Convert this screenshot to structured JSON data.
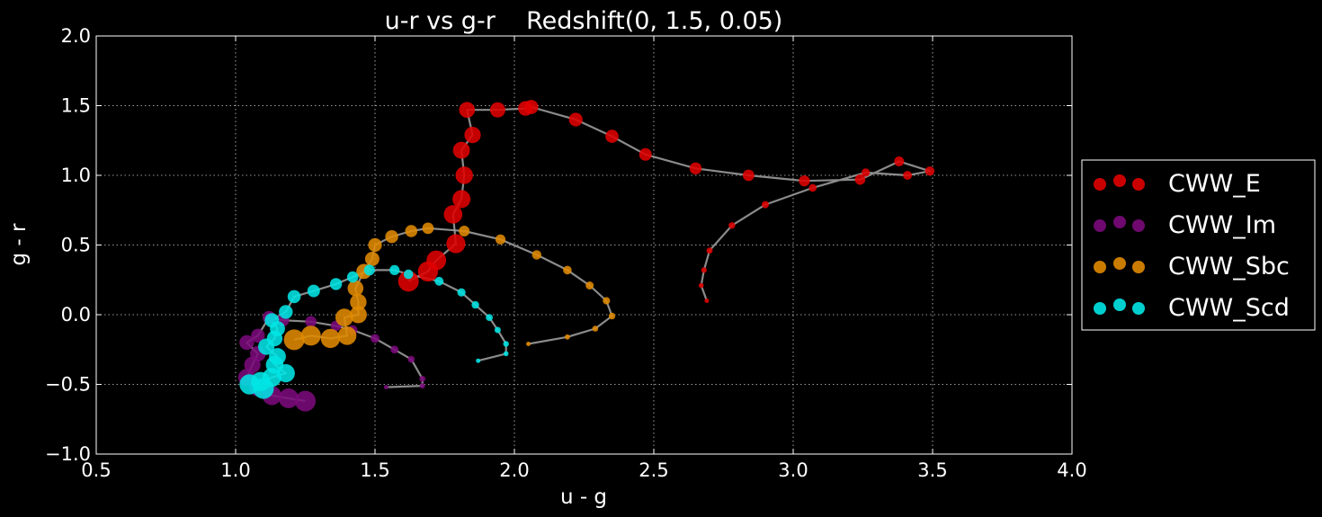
{
  "chart_data": {
    "type": "scatter",
    "title": "u-r vs g-r    Redshift(0, 1.5, 0.05)",
    "xlabel": "u - g",
    "ylabel": "g - r",
    "xlim": [
      0.5,
      4.0
    ],
    "ylim": [
      -1.0,
      2.0
    ],
    "xticks": [
      "0.5",
      "1.0",
      "1.5",
      "2.0",
      "2.5",
      "3.0",
      "3.5",
      "4.0"
    ],
    "yticks": [
      "−1.0",
      "−0.5",
      "0.0",
      "0.5",
      "1.0",
      "1.5",
      "2.0"
    ],
    "grid": true,
    "legend_position": "outside-right",
    "background": "#000000",
    "track_color": "#9a9a9a",
    "series": [
      {
        "name": "CWW_E",
        "color": "#e00000",
        "points": [
          [
            2.69,
            0.1
          ],
          [
            2.67,
            0.21
          ],
          [
            2.68,
            0.32
          ],
          [
            2.7,
            0.46
          ],
          [
            2.78,
            0.64
          ],
          [
            2.9,
            0.79
          ],
          [
            3.07,
            0.91
          ],
          [
            3.26,
            1.02
          ],
          [
            3.41,
            1.0
          ],
          [
            3.49,
            1.03
          ],
          [
            3.38,
            1.1
          ],
          [
            3.24,
            0.97
          ],
          [
            3.04,
            0.96
          ],
          [
            2.84,
            1.0
          ],
          [
            2.65,
            1.05
          ],
          [
            2.47,
            1.15
          ],
          [
            2.35,
            1.28
          ],
          [
            2.22,
            1.4
          ],
          [
            2.06,
            1.49
          ],
          [
            2.04,
            1.48
          ],
          [
            1.94,
            1.47
          ],
          [
            1.83,
            1.47
          ],
          [
            1.85,
            1.29
          ],
          [
            1.81,
            1.18
          ],
          [
            1.82,
            1.0
          ],
          [
            1.81,
            0.83
          ],
          [
            1.78,
            0.72
          ],
          [
            1.79,
            0.51
          ],
          [
            1.72,
            0.39
          ],
          [
            1.69,
            0.31
          ],
          [
            1.62,
            0.24
          ]
        ]
      },
      {
        "name": "CWW_Im",
        "color": "#7b0a7b",
        "points": [
          [
            1.54,
            -0.52
          ],
          [
            1.67,
            -0.51
          ],
          [
            1.67,
            -0.46
          ],
          [
            1.63,
            -0.32
          ],
          [
            1.57,
            -0.25
          ],
          [
            1.5,
            -0.17
          ],
          [
            1.42,
            -0.11
          ],
          [
            1.36,
            -0.08
          ],
          [
            1.27,
            -0.05
          ],
          [
            1.17,
            -0.04
          ],
          [
            1.12,
            -0.02
          ],
          [
            1.08,
            -0.15
          ],
          [
            1.04,
            -0.2
          ],
          [
            1.08,
            -0.28
          ],
          [
            1.06,
            -0.36
          ],
          [
            1.04,
            -0.45
          ],
          [
            1.08,
            -0.52
          ],
          [
            1.13,
            -0.58
          ],
          [
            1.19,
            -0.6
          ],
          [
            1.25,
            -0.62
          ]
        ]
      },
      {
        "name": "CWW_Sbc",
        "color": "#e08a00",
        "points": [
          [
            2.05,
            -0.21
          ],
          [
            2.19,
            -0.16
          ],
          [
            2.29,
            -0.1
          ],
          [
            2.35,
            -0.01
          ],
          [
            2.33,
            0.1
          ],
          [
            2.27,
            0.21
          ],
          [
            2.19,
            0.32
          ],
          [
            2.08,
            0.43
          ],
          [
            1.95,
            0.54
          ],
          [
            1.82,
            0.6
          ],
          [
            1.69,
            0.62
          ],
          [
            1.63,
            0.6
          ],
          [
            1.56,
            0.56
          ],
          [
            1.5,
            0.5
          ],
          [
            1.49,
            0.4
          ],
          [
            1.46,
            0.31
          ],
          [
            1.43,
            0.19
          ],
          [
            1.44,
            0.09
          ],
          [
            1.44,
            0.0
          ],
          [
            1.39,
            -0.02
          ],
          [
            1.4,
            -0.15
          ],
          [
            1.34,
            -0.17
          ],
          [
            1.27,
            -0.15
          ],
          [
            1.21,
            -0.18
          ]
        ]
      },
      {
        "name": "CWW_Scd",
        "color": "#00e5e5",
        "points": [
          [
            1.87,
            -0.33
          ],
          [
            1.97,
            -0.28
          ],
          [
            1.97,
            -0.21
          ],
          [
            1.94,
            -0.11
          ],
          [
            1.91,
            -0.02
          ],
          [
            1.86,
            0.07
          ],
          [
            1.81,
            0.16
          ],
          [
            1.73,
            0.24
          ],
          [
            1.62,
            0.29
          ],
          [
            1.57,
            0.32
          ],
          [
            1.48,
            0.32
          ],
          [
            1.42,
            0.27
          ],
          [
            1.36,
            0.22
          ],
          [
            1.28,
            0.17
          ],
          [
            1.21,
            0.13
          ],
          [
            1.18,
            0.02
          ],
          [
            1.13,
            -0.04
          ],
          [
            1.15,
            -0.1
          ],
          [
            1.14,
            -0.17
          ],
          [
            1.11,
            -0.23
          ],
          [
            1.15,
            -0.3
          ],
          [
            1.14,
            -0.36
          ],
          [
            1.18,
            -0.42
          ],
          [
            1.13,
            -0.45
          ],
          [
            1.09,
            -0.48
          ],
          [
            1.05,
            -0.5
          ],
          [
            1.1,
            -0.53
          ]
        ]
      }
    ]
  }
}
